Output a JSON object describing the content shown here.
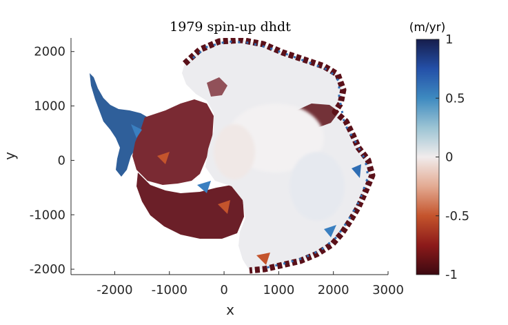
{
  "chart_data": {
    "type": "heatmap",
    "title": "1979 spin-up dhdt",
    "xlabel": "x",
    "ylabel": "y",
    "xlim": [
      -2800,
      3000
    ],
    "ylim": [
      -2100,
      2250
    ],
    "xticks": [
      -2000,
      -1000,
      0,
      1000,
      2000,
      3000
    ],
    "xtick_labels": [
      "-2000",
      "-1000",
      "0",
      "1000",
      "2000",
      "3000"
    ],
    "yticks": [
      -2000,
      -1000,
      0,
      1000,
      2000
    ],
    "ytick_labels": [
      "-2000",
      "-1000",
      "0",
      "1000",
      "2000"
    ],
    "grid": false,
    "colorbar": {
      "label": "(m/yr)",
      "range": [
        -1,
        1
      ],
      "ticks": [
        -1,
        -0.5,
        0,
        0.5,
        1
      ],
      "tick_labels": [
        "-1",
        "-0.5",
        "0",
        "0.5",
        "1"
      ],
      "colormap_stops": [
        {
          "value": -1.0,
          "color": "#3c0911"
        },
        {
          "value": -0.75,
          "color": "#8c1a1a"
        },
        {
          "value": -0.5,
          "color": "#c4542c"
        },
        {
          "value": -0.25,
          "color": "#e3aa92"
        },
        {
          "value": 0.0,
          "color": "#f1ecec"
        },
        {
          "value": 0.25,
          "color": "#9cc4d4"
        },
        {
          "value": 0.5,
          "color": "#3e8ac0"
        },
        {
          "value": 0.75,
          "color": "#2450a8"
        },
        {
          "value": 1.0,
          "color": "#161d4c"
        }
      ]
    },
    "field_description_colors": {
      "interior": "#ebebee",
      "coastal_thinning": "#5e1218",
      "coastal_thickening": "#2e6db4"
    }
  }
}
